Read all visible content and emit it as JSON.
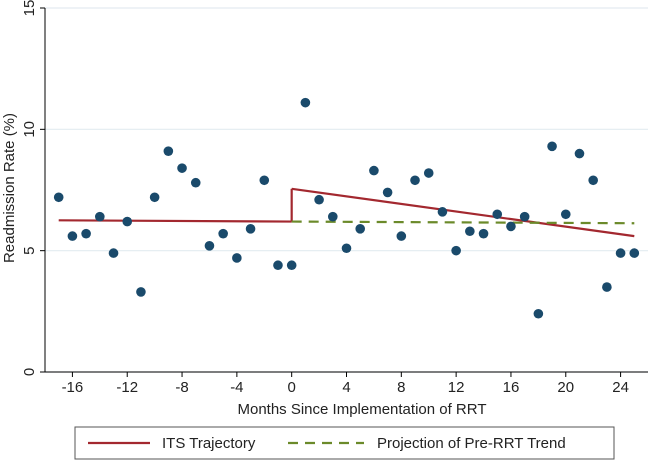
{
  "chart_data": {
    "type": "scatter",
    "title": "",
    "xlabel": "Months Since Implementation of RRT",
    "ylabel": "Readmission Rate (%)",
    "xlim": [
      -18,
      26
    ],
    "ylim": [
      0,
      15
    ],
    "xticks": [
      -16,
      -12,
      -8,
      -4,
      0,
      4,
      8,
      12,
      16,
      20,
      24
    ],
    "yticks": [
      0,
      5,
      10,
      15
    ],
    "grid": "horizontal",
    "legend_position": "bottom",
    "colors": {
      "points": "#1a4a6b",
      "its_line": "#a3282f",
      "projection_line": "#6b8a2a",
      "grid": "#e3ebf0",
      "axis": "#000000"
    },
    "points": [
      {
        "x": -17,
        "y": 7.2
      },
      {
        "x": -16,
        "y": 5.6
      },
      {
        "x": -15,
        "y": 5.7
      },
      {
        "x": -14,
        "y": 6.4
      },
      {
        "x": -13,
        "y": 4.9
      },
      {
        "x": -12,
        "y": 6.2
      },
      {
        "x": -11,
        "y": 3.3
      },
      {
        "x": -10,
        "y": 7.2
      },
      {
        "x": -9,
        "y": 9.1
      },
      {
        "x": -8,
        "y": 8.4
      },
      {
        "x": -7,
        "y": 7.8
      },
      {
        "x": -6,
        "y": 5.2
      },
      {
        "x": -5,
        "y": 5.7
      },
      {
        "x": -4,
        "y": 4.7
      },
      {
        "x": -3,
        "y": 5.9
      },
      {
        "x": -2,
        "y": 7.9
      },
      {
        "x": -1,
        "y": 4.4
      },
      {
        "x": 0,
        "y": 4.4
      },
      {
        "x": 1,
        "y": 11.1
      },
      {
        "x": 2,
        "y": 7.1
      },
      {
        "x": 3,
        "y": 6.4
      },
      {
        "x": 4,
        "y": 5.1
      },
      {
        "x": 5,
        "y": 5.9
      },
      {
        "x": 6,
        "y": 8.3
      },
      {
        "x": 7,
        "y": 7.4
      },
      {
        "x": 8,
        "y": 5.6
      },
      {
        "x": 9,
        "y": 7.9
      },
      {
        "x": 10,
        "y": 8.2
      },
      {
        "x": 11,
        "y": 6.6
      },
      {
        "x": 12,
        "y": 5.0
      },
      {
        "x": 13,
        "y": 5.8
      },
      {
        "x": 14,
        "y": 5.7
      },
      {
        "x": 15,
        "y": 6.5
      },
      {
        "x": 16,
        "y": 6.0
      },
      {
        "x": 17,
        "y": 6.4
      },
      {
        "x": 18,
        "y": 2.4
      },
      {
        "x": 19,
        "y": 9.3
      },
      {
        "x": 20,
        "y": 6.5
      },
      {
        "x": 21,
        "y": 9.0
      },
      {
        "x": 22,
        "y": 7.9
      },
      {
        "x": 23,
        "y": 3.5
      },
      {
        "x": 24,
        "y": 4.9
      },
      {
        "x": 25,
        "y": 4.9
      }
    ],
    "series": [
      {
        "name": "ITS Trajectory",
        "style": "solid",
        "segments": [
          [
            {
              "x": -17,
              "y": 6.25
            },
            {
              "x": 0,
              "y": 6.2
            }
          ],
          [
            {
              "x": 0,
              "y": 6.2
            },
            {
              "x": 0,
              "y": 7.55
            }
          ],
          [
            {
              "x": 0,
              "y": 7.55
            },
            {
              "x": 25,
              "y": 5.6
            }
          ]
        ]
      },
      {
        "name": "Projection of Pre-RRT Trend",
        "style": "dashed",
        "segments": [
          [
            {
              "x": 0,
              "y": 6.2
            },
            {
              "x": 25,
              "y": 6.13
            }
          ]
        ]
      }
    ]
  }
}
